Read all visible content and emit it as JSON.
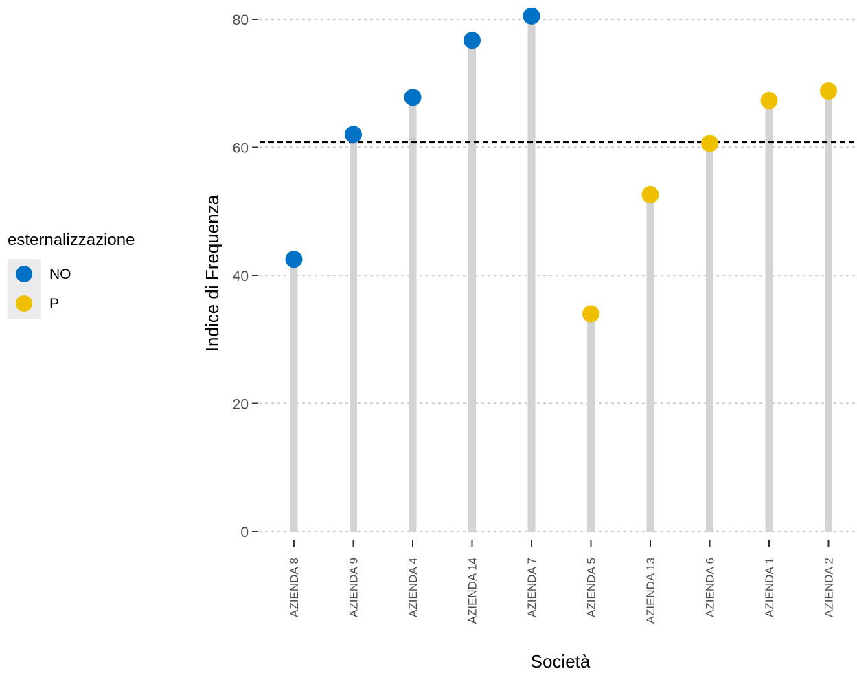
{
  "chart_data": {
    "type": "lollipop",
    "xlabel": "Società",
    "ylabel": "Indice di Frequenza",
    "ylim": [
      0,
      80
    ],
    "yticks": [
      0,
      20,
      40,
      60,
      80
    ],
    "reference_line": 60.8,
    "grid": "horizontal dotted",
    "legend": {
      "title": "esternalizzazione",
      "placement": "left",
      "entries": [
        {
          "label": "NO",
          "color": "#0072c6"
        },
        {
          "label": "P",
          "color": "#efc000"
        }
      ]
    },
    "categories": [
      "AZIENDA 8",
      "AZIENDA 9",
      "AZIENDA 4",
      "AZIENDA 14",
      "AZIENDA 7",
      "AZIENDA 5",
      "AZIENDA 13",
      "AZIENDA 6",
      "AZIENDA 1",
      "AZIENDA 2"
    ],
    "values": [
      42.5,
      62.0,
      67.8,
      76.7,
      80.5,
      34.0,
      52.6,
      60.6,
      67.3,
      68.8
    ],
    "groups": [
      "NO",
      "NO",
      "NO",
      "NO",
      "NO",
      "P",
      "P",
      "P",
      "P",
      "P"
    ],
    "colors": {
      "NO": "#0072c6",
      "P": "#efc000",
      "stem": "#d3d3d3",
      "grid": "#c8c8c8",
      "reference": "#000000"
    }
  }
}
